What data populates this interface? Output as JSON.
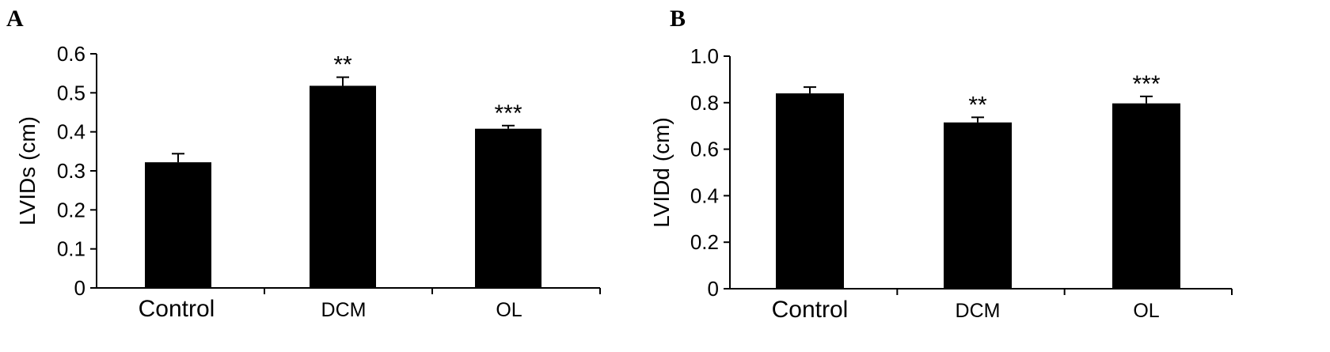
{
  "panels": [
    {
      "letter": "A"
    },
    {
      "letter": "B"
    }
  ],
  "chart_data": [
    {
      "type": "bar",
      "panel": "A",
      "title": "",
      "xlabel": "",
      "ylabel": "LVIDs (cm)",
      "ylim": [
        0,
        0.6
      ],
      "yticks": [
        0,
        0.1,
        0.2,
        0.3,
        0.4,
        0.5,
        0.6
      ],
      "ytick_labels": [
        "0",
        "0.1",
        "0.2",
        "0.3",
        "0.4",
        "0.5",
        "0.6"
      ],
      "grid": false,
      "categories": [
        "Control",
        "DCM",
        "OL"
      ],
      "values": [
        0.322,
        0.518,
        0.408
      ],
      "errors": [
        0.022,
        0.022,
        0.008
      ],
      "annotations": [
        "",
        "**",
        "***"
      ],
      "colors": {
        "bar": "#000000",
        "axis": "#000000"
      }
    },
    {
      "type": "bar",
      "panel": "B",
      "title": "",
      "xlabel": "",
      "ylabel": "LVIDd (cm)",
      "ylim": [
        0,
        1.0
      ],
      "yticks": [
        0,
        0.2,
        0.4,
        0.6,
        0.8,
        1.0
      ],
      "ytick_labels": [
        "0",
        "0.2",
        "0.4",
        "0.6",
        "0.8",
        "1.0"
      ],
      "grid": false,
      "categories": [
        "Control",
        "DCM",
        "OL"
      ],
      "values": [
        0.84,
        0.715,
        0.797
      ],
      "errors": [
        0.027,
        0.022,
        0.03
      ],
      "annotations": [
        "",
        "**",
        "***"
      ],
      "colors": {
        "bar": "#000000",
        "axis": "#000000"
      }
    }
  ]
}
